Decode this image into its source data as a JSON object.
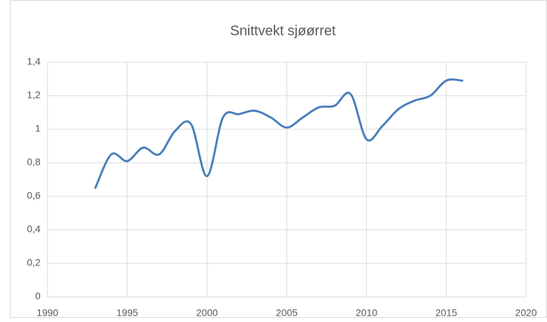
{
  "chart_data": {
    "type": "line",
    "title": "Snittvekt sjøørret",
    "x": [
      1993,
      1994,
      1995,
      1996,
      1997,
      1998,
      1999,
      2000,
      2001,
      2002,
      2003,
      2004,
      2005,
      2006,
      2007,
      2008,
      2009,
      2010,
      2011,
      2012,
      2013,
      2014,
      2015,
      2016
    ],
    "series": [
      {
        "name": "Snittvekt",
        "color": "#4a7ebb",
        "values": [
          0.65,
          0.85,
          0.81,
          0.89,
          0.85,
          0.99,
          1.03,
          0.72,
          1.07,
          1.09,
          1.11,
          1.07,
          1.01,
          1.07,
          1.13,
          1.14,
          1.21,
          0.94,
          1.02,
          1.12,
          1.17,
          1.2,
          1.29,
          1.29
        ]
      }
    ],
    "xlim": [
      1990,
      2020
    ],
    "xticks": [
      1990,
      1995,
      2000,
      2005,
      2010,
      2015,
      2020
    ],
    "ylim": [
      0,
      1.4
    ],
    "yticks": [
      0,
      {
        "value": 0.2,
        "label": "0,2"
      },
      {
        "value": 0.4,
        "label": "0,4"
      },
      {
        "value": 0.6,
        "label": "0,6"
      },
      {
        "value": 0.8,
        "label": "0,8"
      },
      1,
      {
        "value": 1.2,
        "label": "1,2"
      },
      {
        "value": 1.4,
        "label": "1,4"
      }
    ],
    "grid": true,
    "smooth": true
  }
}
